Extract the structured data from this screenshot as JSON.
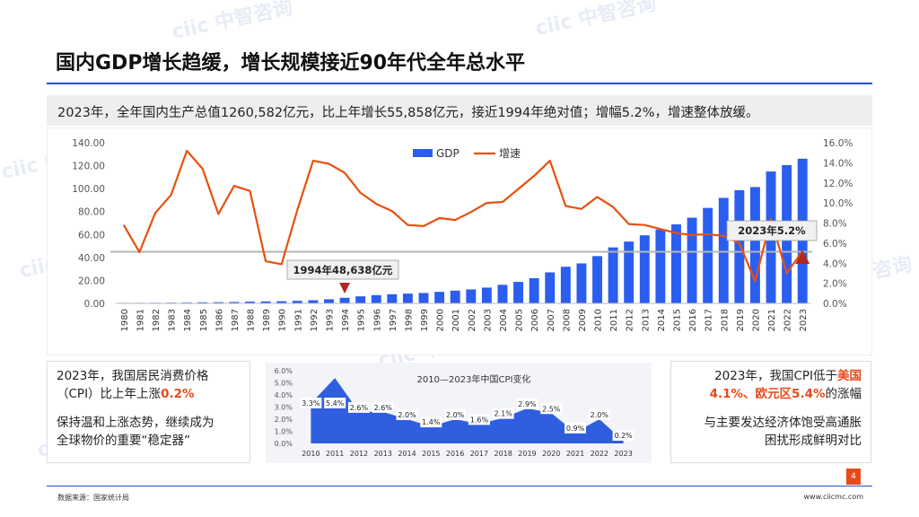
{
  "title": "国内GDP增长趋缓，增长规模接近90年代全年总水平",
  "summary": "2023年，全年国内生产总值1260,582亿元，比上年增长55,858亿元，接近1994年绝对值；增幅5.2%，增速整体放缓。",
  "left_box": {
    "line1": "2023年，我国居民消费价格",
    "line2_prefix": "（CPI）比上年上涨",
    "line2_value": "0.2%",
    "line3": "保持温和上涨态势，继续成为",
    "line4": "全球物价的重要“稳定器”"
  },
  "right_box": {
    "line1_prefix": "2023年，我国CPI低于",
    "line1_hl": "美国",
    "line2_hl": "4.1%、欧元区5.4%",
    "line2_suffix": "的涨幅",
    "line3": "与主要发达经济体饱受高通胀",
    "line4": "困扰形成鲜明对比"
  },
  "footer": {
    "source": "数据来源：国家统计局",
    "site": "www.ciicmc.com",
    "page": "4"
  },
  "watermark_text": "ciic 中智咨询",
  "colors": {
    "gdp_bar": "#2a5ef0",
    "growth_line": "#e8500e",
    "accent": "#1f4fd8",
    "highlight": "#e84a1b",
    "cpi_area": "#2f5fe0"
  },
  "chart_data": [
    {
      "type": "bar",
      "categories": [
        "1980",
        "1981",
        "1982",
        "1983",
        "1984",
        "1985",
        "1986",
        "1987",
        "1988",
        "1989",
        "1990",
        "1991",
        "1992",
        "1993",
        "1994",
        "1995",
        "1996",
        "1997",
        "1998",
        "1999",
        "2000",
        "2001",
        "2002",
        "2003",
        "2004",
        "2005",
        "2006",
        "2007",
        "2008",
        "2009",
        "2010",
        "2011",
        "2012",
        "2013",
        "2014",
        "2015",
        "2016",
        "2017",
        "2018",
        "2019",
        "2020",
        "2021",
        "2022",
        "2023"
      ],
      "series": [
        {
          "name": "GDP",
          "type": "bar",
          "axis": "left",
          "values": [
            0.46,
            0.49,
            0.54,
            0.6,
            0.73,
            0.91,
            1.04,
            1.22,
            1.51,
            1.71,
            1.89,
            2.22,
            2.72,
            3.57,
            4.86,
            6.13,
            7.18,
            7.97,
            8.52,
            9.06,
            10.03,
            11.09,
            12.17,
            13.74,
            16.18,
            18.73,
            21.94,
            27.01,
            31.92,
            34.85,
            41.21,
            48.79,
            53.86,
            59.3,
            64.36,
            68.89,
            74.64,
            83.2,
            91.93,
            98.65,
            101.36,
            114.92,
            120.47,
            126.06
          ]
        },
        {
          "name": "增速",
          "type": "line",
          "axis": "right",
          "values": [
            7.8,
            5.1,
            9.0,
            10.8,
            15.2,
            13.4,
            8.9,
            11.7,
            11.2,
            4.2,
            3.9,
            9.3,
            14.2,
            13.9,
            13.0,
            11.0,
            9.9,
            9.2,
            7.8,
            7.7,
            8.5,
            8.3,
            9.1,
            10.0,
            10.1,
            11.4,
            12.7,
            14.2,
            9.7,
            9.4,
            10.6,
            9.6,
            7.9,
            7.8,
            7.4,
            7.0,
            6.8,
            6.9,
            6.7,
            6.0,
            2.2,
            8.4,
            3.0,
            5.2
          ]
        }
      ],
      "y_left_ticks": [
        "0.00",
        "20.00",
        "40.00",
        "60.00",
        "80.00",
        "100.00",
        "120.00",
        "140.00"
      ],
      "y_right_ticks": [
        "0.0%",
        "2.0%",
        "4.0%",
        "6.0%",
        "8.0%",
        "10.0%",
        "12.0%",
        "14.0%",
        "16.0%"
      ],
      "ylim_left": [
        0,
        140
      ],
      "ylim_right": [
        0,
        16
      ],
      "legend": [
        "GDP",
        "增速"
      ],
      "legend_position": "top-center",
      "reference_line_value": 45,
      "annotations": [
        {
          "label": "1994年48,638亿元",
          "category": "1994"
        },
        {
          "label": "2023年5.2%",
          "category": "2023"
        }
      ]
    },
    {
      "type": "area",
      "title": "2010—2023年中国CPI变化",
      "x": [
        "2010",
        "2011",
        "2012",
        "2013",
        "2014",
        "2015",
        "2016",
        "2017",
        "2018",
        "2019",
        "2020",
        "2021",
        "2022",
        "2023"
      ],
      "values": [
        3.3,
        5.4,
        2.6,
        2.6,
        2.0,
        1.4,
        2.0,
        1.6,
        2.1,
        2.9,
        2.5,
        0.9,
        2.0,
        0.2
      ],
      "labels": [
        "3.3%",
        "5.4%",
        "2.6%",
        "2.6%",
        "2.0%",
        "1.4%",
        "2.0%",
        "1.6%",
        "2.1%",
        "2.9%",
        "2.5%",
        "0.9%",
        "2.0%",
        "0.2%"
      ],
      "y_ticks": [
        "0.0%",
        "1.0%",
        "2.0%",
        "3.0%",
        "4.0%",
        "5.0%",
        "6.0%"
      ],
      "ylim": [
        0,
        6
      ]
    }
  ]
}
